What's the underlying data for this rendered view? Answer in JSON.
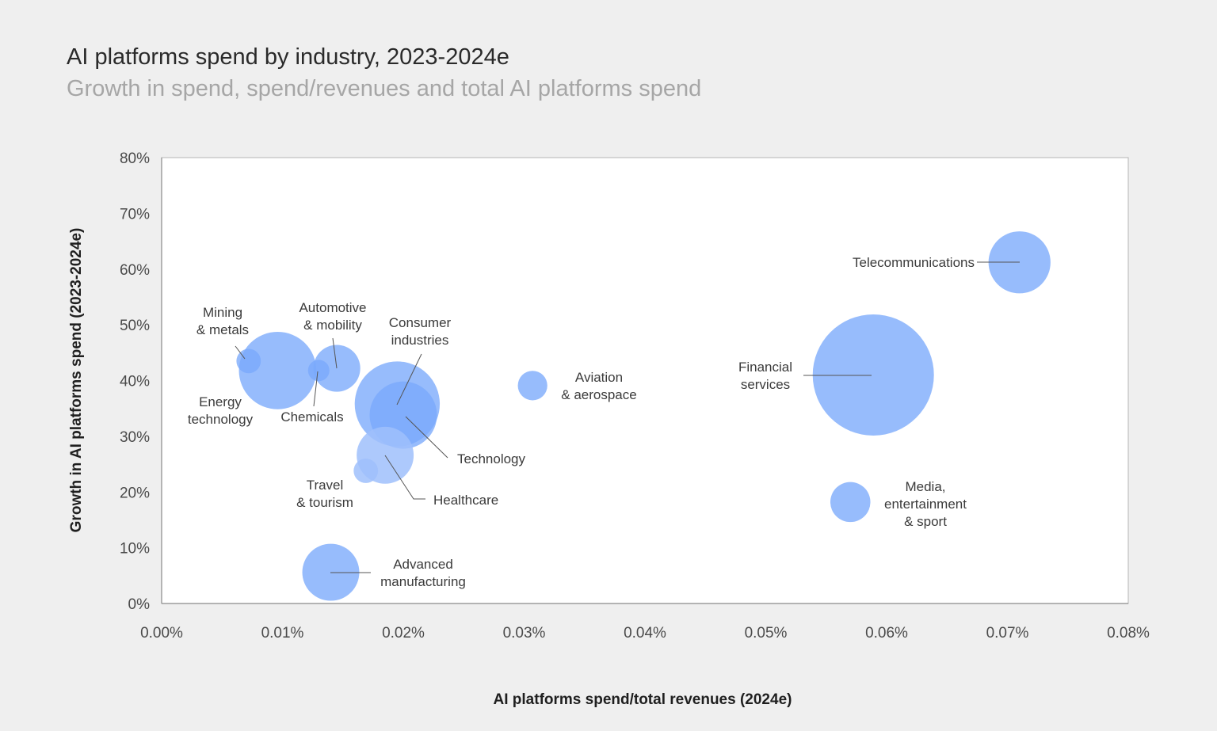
{
  "chart_data": {
    "type": "bubble",
    "title": "AI platforms spend by industry, 2023-2024e",
    "subtitle": "Growth in spend, spend/revenues and total AI platforms spend",
    "xlabel": "AI platforms spend/total revenues (2024e)",
    "ylabel": "Growth in AI platforms spend (2023-2024e)",
    "xlim": [
      0,
      0.08
    ],
    "ylim": [
      0,
      80
    ],
    "x_ticks": [
      {
        "value": 0.0,
        "label": "0.00%"
      },
      {
        "value": 0.01,
        "label": "0.01%"
      },
      {
        "value": 0.02,
        "label": "0.02%"
      },
      {
        "value": 0.03,
        "label": "0.03%"
      },
      {
        "value": 0.04,
        "label": "0.04%"
      },
      {
        "value": 0.05,
        "label": "0.05%"
      },
      {
        "value": 0.06,
        "label": "0.06%"
      },
      {
        "value": 0.07,
        "label": "0.07%"
      },
      {
        "value": 0.08,
        "label": "0.08%"
      }
    ],
    "y_ticks": [
      {
        "value": 0,
        "label": "0%"
      },
      {
        "value": 10,
        "label": "10%"
      },
      {
        "value": 20,
        "label": "20%"
      },
      {
        "value": 30,
        "label": "30%"
      },
      {
        "value": 40,
        "label": "40%"
      },
      {
        "value": 50,
        "label": "50%"
      },
      {
        "value": 60,
        "label": "60%"
      },
      {
        "value": 70,
        "label": "70%"
      },
      {
        "value": 80,
        "label": "80%"
      }
    ],
    "grid": false,
    "colors": {
      "bubble": "#7aa9fb",
      "bubble_light": "#9fc0fb",
      "leader": "#555555"
    },
    "points": [
      {
        "name": "Mining & metals",
        "label_lines": [
          "Mining",
          "& metals"
        ],
        "x": 0.0072,
        "y": 43.5,
        "size": 1.3,
        "tone": "dark"
      },
      {
        "name": "Energy technology",
        "label_lines": [
          "Energy",
          "technology"
        ],
        "x": 0.0096,
        "y": 41.8,
        "size": 13.1,
        "tone": "dark"
      },
      {
        "name": "Automotive & mobility",
        "label_lines": [
          "Automotive",
          "& mobility"
        ],
        "x": 0.0145,
        "y": 42.2,
        "size": 4.8,
        "tone": "dark"
      },
      {
        "name": "Chemicals",
        "label_lines": [
          "Chemicals"
        ],
        "x": 0.013,
        "y": 41.8,
        "size": 1,
        "tone": "dark"
      },
      {
        "name": "Consumer industries",
        "label_lines": [
          "Consumer",
          "industries"
        ],
        "x": 0.0195,
        "y": 35.8,
        "size": 15.8,
        "tone": "dark"
      },
      {
        "name": "Technology",
        "label_lines": [
          "Technology"
        ],
        "x": 0.02,
        "y": 33.8,
        "size": 9.9,
        "tone": "dark"
      },
      {
        "name": "Healthcare",
        "label_lines": [
          "Healthcare"
        ],
        "x": 0.0185,
        "y": 26.6,
        "size": 7.1,
        "tone": "light"
      },
      {
        "name": "Travel & tourism",
        "label_lines": [
          "Travel",
          "& tourism"
        ],
        "x": 0.0169,
        "y": 23.8,
        "size": 1.3,
        "tone": "light"
      },
      {
        "name": "Aviation & aerospace",
        "label_lines": [
          "Aviation",
          "& aerospace"
        ],
        "x": 0.0307,
        "y": 39.1,
        "size": 1.9,
        "tone": "dark"
      },
      {
        "name": "Advanced manufacturing",
        "label_lines": [
          "Advanced",
          "manufacturing"
        ],
        "x": 0.014,
        "y": 5.6,
        "size": 7.1,
        "tone": "dark"
      },
      {
        "name": "Financial services",
        "label_lines": [
          "Financial",
          "services"
        ],
        "x": 0.0589,
        "y": 41.0,
        "size": 32.1,
        "tone": "dark"
      },
      {
        "name": "Media, entertainment & sport",
        "label_lines": [
          "Media,",
          "entertainment",
          "& sport"
        ],
        "x": 0.057,
        "y": 18.2,
        "size": 3.5,
        "tone": "dark"
      },
      {
        "name": "Telecommunications",
        "label_lines": [
          "Telecommunications"
        ],
        "x": 0.071,
        "y": 61.2,
        "size": 8.4,
        "tone": "dark"
      }
    ]
  }
}
